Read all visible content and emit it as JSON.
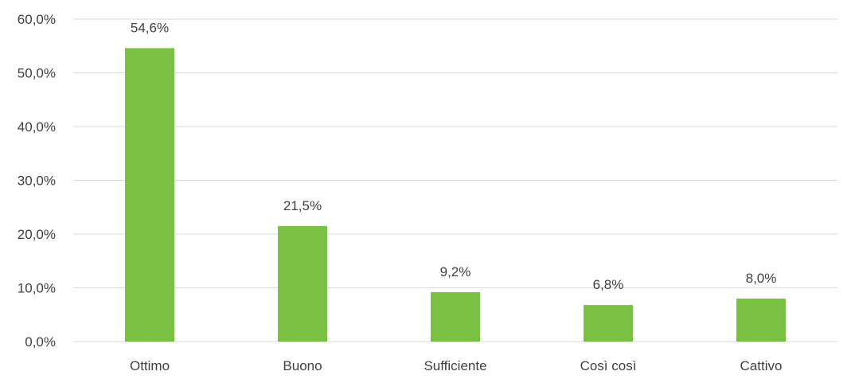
{
  "chart_data": {
    "type": "bar",
    "title": "",
    "xlabel": "",
    "ylabel": "",
    "categories": [
      "Ottimo",
      "Buono",
      "Sufficiente",
      "Così così",
      "Cattivo"
    ],
    "values": [
      54.6,
      21.5,
      9.2,
      6.8,
      8.0
    ],
    "data_labels": [
      "54,6%",
      "21,5%",
      "9,2%",
      "6,8%",
      "8,0%"
    ],
    "ylim": [
      0,
      60
    ],
    "yticks": [
      0,
      10,
      20,
      30,
      40,
      50,
      60
    ],
    "ytick_labels": [
      "0,0%",
      "10,0%",
      "20,0%",
      "30,0%",
      "40,0%",
      "50,0%",
      "60,0%"
    ],
    "grid": true,
    "legend": "none",
    "colors": {
      "bar": "#7AC143",
      "grid": "#D9D9D9",
      "text": "#404040"
    }
  }
}
